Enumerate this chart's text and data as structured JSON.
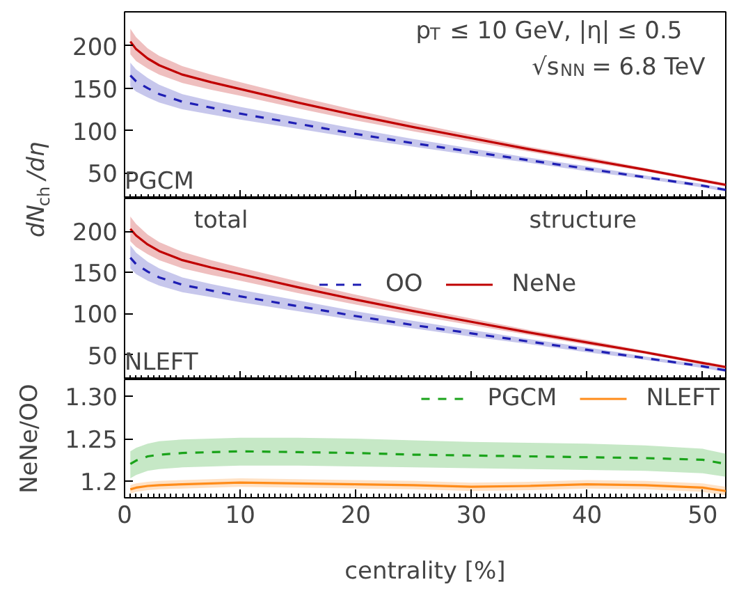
{
  "chart_data": [
    {
      "type": "line",
      "x": [
        0.5,
        1,
        2,
        3,
        5,
        7.5,
        10,
        15,
        20,
        25,
        30,
        35,
        40,
        45,
        50,
        52
      ],
      "xlim": [
        0,
        52
      ],
      "xticks": [
        0,
        10,
        20,
        30,
        40,
        50
      ],
      "ylim": [
        20,
        240
      ],
      "yticks": [
        50,
        100,
        150,
        200
      ],
      "tick_labels": "y",
      "ylabel": "dN$_{ch}$/dη",
      "series": [
        {
          "color": "#1f1fb4",
          "line_style": "dashed",
          "values": [
            165,
            158,
            150,
            143,
            134,
            127,
            120,
            108,
            96,
            85,
            75,
            65,
            55,
            45,
            35,
            30
          ],
          "lower": [
            152,
            146,
            139,
            133,
            125,
            119,
            113,
            102,
            91,
            81,
            71,
            62,
            52,
            43,
            33,
            28
          ],
          "upper": [
            180,
            172,
            162,
            154,
            143,
            135,
            128,
            115,
            102,
            90,
            79,
            68,
            58,
            47,
            37,
            32
          ]
        },
        {
          "color": "#c00000",
          "line_style": "solid",
          "values": [
            205,
            196,
            185,
            177,
            166,
            157,
            149,
            133,
            118,
            104,
            91,
            78,
            66,
            54,
            41,
            36
          ],
          "lower": [
            190,
            182,
            173,
            166,
            156,
            148,
            141,
            126,
            112,
            99,
            87,
            75,
            63,
            52,
            39,
            34
          ],
          "upper": [
            220,
            210,
            197,
            188,
            176,
            166,
            157,
            140,
            124,
            109,
            95,
            81,
            69,
            56,
            43,
            38
          ]
        }
      ],
      "annotations": [
        {
          "text": "p$_{T}$ ≤ 10 GeV, |η| ≤ 0.5"
        },
        {
          "text": "√s$_{NN}$ = 6.8 TeV"
        },
        {
          "text": "PGCM"
        }
      ]
    },
    {
      "type": "line",
      "x": [
        0.5,
        1,
        2,
        3,
        5,
        7.5,
        10,
        15,
        20,
        25,
        30,
        35,
        40,
        45,
        50,
        52
      ],
      "xlim": [
        0,
        52
      ],
      "xticks": [
        0,
        10,
        20,
        30,
        40,
        50
      ],
      "ylim": [
        20,
        240
      ],
      "yticks": [
        50,
        100,
        150,
        200
      ],
      "tick_labels": "y",
      "legend": "top right",
      "series": [
        {
          "name": "OO",
          "color": "#1f1fb4",
          "line_style": "dashed",
          "values": [
            168,
            160,
            151,
            144,
            135,
            128,
            121,
            109,
            97,
            86,
            76,
            66,
            56,
            46,
            36,
            31
          ],
          "lower": [
            155,
            148,
            140,
            134,
            126,
            120,
            114,
            103,
            92,
            82,
            72,
            63,
            53,
            44,
            34,
            29
          ],
          "upper": [
            183,
            174,
            163,
            155,
            144,
            136,
            129,
            116,
            103,
            91,
            80,
            69,
            59,
            48,
            38,
            33
          ]
        },
        {
          "name": "NeNe",
          "color": "#c00000",
          "line_style": "solid",
          "values": [
            203,
            195,
            184,
            176,
            165,
            156,
            148,
            132,
            117,
            103,
            90,
            77,
            65,
            53,
            40,
            35
          ],
          "lower": [
            188,
            181,
            172,
            165,
            155,
            147,
            140,
            125,
            111,
            98,
            86,
            74,
            62,
            51,
            38,
            33
          ],
          "upper": [
            218,
            209,
            196,
            187,
            175,
            165,
            156,
            139,
            123,
            108,
            94,
            80,
            68,
            55,
            42,
            37
          ]
        }
      ],
      "annotations": [
        {
          "text": "NLEFT"
        },
        {
          "text": "total"
        },
        {
          "text": "structure"
        }
      ]
    },
    {
      "type": "line",
      "x": [
        0.5,
        1,
        2,
        3,
        5,
        7.5,
        10,
        15,
        20,
        25,
        30,
        35,
        40,
        45,
        50,
        52
      ],
      "xlim": [
        0,
        52
      ],
      "xticks": [
        0,
        10,
        20,
        30,
        40,
        50
      ],
      "ylim": [
        1.18,
        1.32
      ],
      "yticks": [
        1.2,
        {
          "value": 1.25,
          "label": "1.25"
        },
        {
          "value": 1.3,
          "label": "1.30"
        }
      ],
      "legend": "top right",
      "xlabel": "centrality [%]",
      "ylabel": "NeNe/OO",
      "series": [
        {
          "name": "PGCM",
          "color": "#1aa31a",
          "line_style": "dashed",
          "values": [
            1.22,
            1.224,
            1.229,
            1.231,
            1.233,
            1.234,
            1.235,
            1.234,
            1.233,
            1.231,
            1.23,
            1.229,
            1.228,
            1.227,
            1.225,
            1.22
          ],
          "lower": [
            1.203,
            1.207,
            1.212,
            1.214,
            1.216,
            1.217,
            1.218,
            1.218,
            1.217,
            1.216,
            1.215,
            1.214,
            1.213,
            1.212,
            1.209,
            1.205
          ],
          "upper": [
            1.235,
            1.239,
            1.244,
            1.247,
            1.249,
            1.25,
            1.251,
            1.251,
            1.25,
            1.248,
            1.246,
            1.245,
            1.244,
            1.242,
            1.238,
            1.232
          ]
        },
        {
          "name": "NLEFT",
          "color": "#ff8c1a",
          "line_style": "solid",
          "values": [
            1.19,
            1.192,
            1.194,
            1.195,
            1.196,
            1.197,
            1.198,
            1.197,
            1.196,
            1.195,
            1.193,
            1.194,
            1.196,
            1.195,
            1.192,
            1.188
          ],
          "lower": [
            1.185,
            1.187,
            1.189,
            1.19,
            1.191,
            1.192,
            1.193,
            1.192,
            1.191,
            1.19,
            1.188,
            1.189,
            1.191,
            1.19,
            1.187,
            1.183
          ],
          "upper": [
            1.195,
            1.197,
            1.199,
            1.2,
            1.201,
            1.202,
            1.203,
            1.202,
            1.201,
            1.2,
            1.198,
            1.199,
            1.201,
            1.2,
            1.197,
            1.193
          ]
        }
      ]
    }
  ]
}
